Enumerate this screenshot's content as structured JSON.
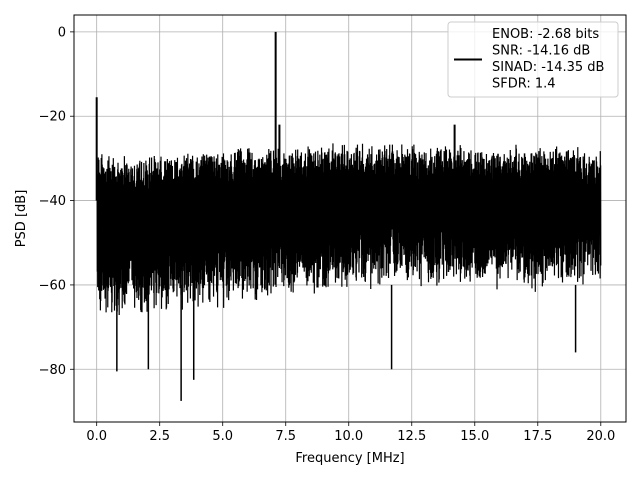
{
  "chart_data": {
    "type": "line",
    "xlabel": "Frequency [MHz]",
    "ylabel": "PSD [dB]",
    "xlim": [
      -0.9,
      21.0
    ],
    "ylim": [
      -92.5,
      4.0
    ],
    "x_ticks": [
      {
        "value": 0.0,
        "label": "0.0"
      },
      {
        "value": 2.5,
        "label": "2.5"
      },
      {
        "value": 5.0,
        "label": "5.0"
      },
      {
        "value": 7.5,
        "label": "7.5"
      },
      {
        "value": 10.0,
        "label": "10.0"
      },
      {
        "value": 12.5,
        "label": "12.5"
      },
      {
        "value": 15.0,
        "label": "15.0"
      },
      {
        "value": 17.5,
        "label": "17.5"
      },
      {
        "value": 20.0,
        "label": "20.0"
      }
    ],
    "y_ticks": [
      {
        "value": 0,
        "label": "0"
      },
      {
        "value": -20,
        "label": "−20"
      },
      {
        "value": -40,
        "label": "−40"
      },
      {
        "value": -60,
        "label": "−60"
      },
      {
        "value": -80,
        "label": "−80"
      }
    ],
    "grid": true,
    "legend": {
      "placement": "upper-right",
      "entries": [
        "ENOB: -2.68 bits",
        "SNR: -14.16 dB",
        "SINAD: -14.35 dB",
        "SFDR: 1.4"
      ]
    },
    "series": [
      {
        "color": "#000000",
        "noise_upper_envelope_db": [
          [
            0.05,
            -30
          ],
          [
            1.5,
            -31
          ],
          [
            3.0,
            -30
          ],
          [
            5.0,
            -29
          ],
          [
            6.5,
            -28.5
          ],
          [
            8.0,
            -28
          ],
          [
            10.0,
            -27.5
          ],
          [
            12.5,
            -28
          ],
          [
            15.0,
            -28
          ],
          [
            17.5,
            -28
          ],
          [
            20.0,
            -29
          ]
        ],
        "noise_lower_envelope_db": [
          [
            0.05,
            -66
          ],
          [
            2.0,
            -64
          ],
          [
            5.0,
            -63
          ],
          [
            8.0,
            -60
          ],
          [
            10.0,
            -59
          ],
          [
            12.5,
            -58
          ],
          [
            15.0,
            -58
          ],
          [
            17.5,
            -59
          ],
          [
            20.0,
            -58
          ]
        ],
        "peaks": [
          {
            "x": 0.0,
            "y": -15.5
          },
          {
            "x": 7.1,
            "y": 0.0
          },
          {
            "x": 7.25,
            "y": -22
          },
          {
            "x": 14.2,
            "y": -22
          }
        ],
        "dips": [
          {
            "x": 0.8,
            "y": -80.5
          },
          {
            "x": 2.05,
            "y": -80
          },
          {
            "x": 3.35,
            "y": -87.5
          },
          {
            "x": 3.85,
            "y": -82.5
          },
          {
            "x": 11.7,
            "y": -80
          },
          {
            "x": 19.0,
            "y": -76
          }
        ]
      }
    ]
  }
}
